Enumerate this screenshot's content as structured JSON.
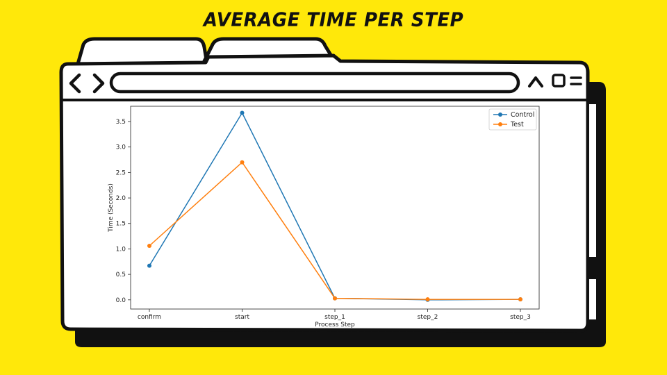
{
  "page": {
    "title": "AVERAGE TIME PER STEP"
  },
  "browser": {
    "back_icon": "chevron-left-icon",
    "forward_icon": "chevron-right-icon",
    "window_controls": [
      "chevron-up-icon",
      "square-icon",
      "menu-lines-icon"
    ]
  },
  "chart_data": {
    "type": "line",
    "categories": [
      "confirm",
      "start",
      "step_1",
      "step_2",
      "step_3"
    ],
    "series": [
      {
        "name": "Control",
        "color": "#1f77b4",
        "values": [
          0.67,
          3.67,
          0.03,
          0.0,
          0.01
        ]
      },
      {
        "name": "Test",
        "color": "#ff7f0e",
        "values": [
          1.06,
          2.7,
          0.03,
          0.01,
          0.01
        ]
      }
    ],
    "title": "",
    "xlabel": "Process Step",
    "ylabel": "Time (Seconds)",
    "ylim": [
      -0.18,
      3.8
    ],
    "yticks": [
      "0.0",
      "0.5",
      "1.0",
      "1.5",
      "2.0",
      "2.5",
      "3.0",
      "3.5"
    ],
    "grid": false,
    "legend": "top-right"
  }
}
